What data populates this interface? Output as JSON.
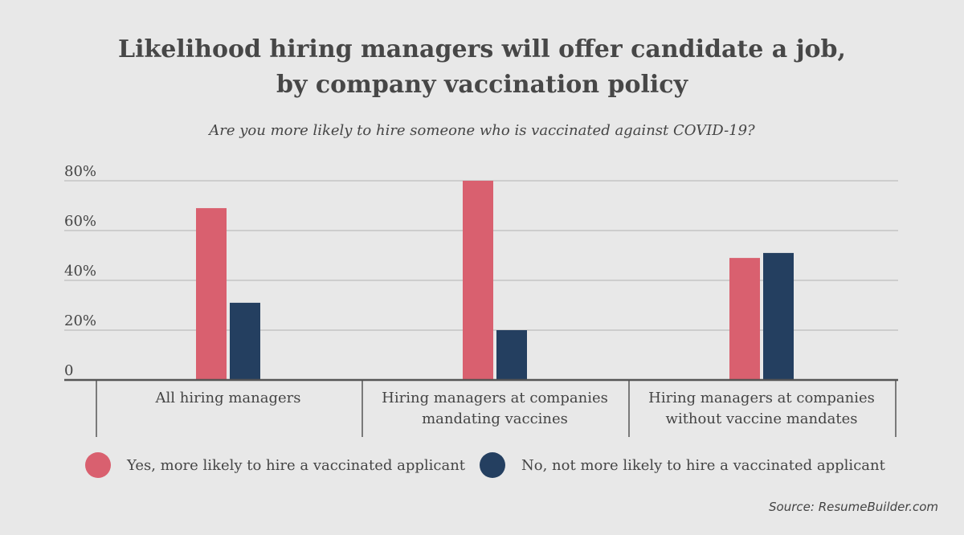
{
  "header": {
    "title_line1": "Likelihood hiring managers will offer candidate a job,",
    "title_line2": "by company vaccination policy",
    "subtitle": "Are you more likely to hire someone who is vaccinated against COVID-19?"
  },
  "chart_data": {
    "type": "bar",
    "title": "Likelihood hiring managers will offer candidate a job, by company vaccination policy",
    "subtitle": "Are you more likely to hire someone who is vaccinated against COVID-19?",
    "categories": [
      [
        "All hiring managers"
      ],
      [
        "Hiring managers at companies",
        "mandating vaccines"
      ],
      [
        "Hiring managers at companies",
        "without vaccine mandates"
      ]
    ],
    "series": [
      {
        "name": "Yes, more likely to hire a vaccinated applicant",
        "color": "#d9606f",
        "values": [
          69,
          80,
          49
        ]
      },
      {
        "name": "No, not more likely to hire a vaccinated applicant",
        "color": "#243f60",
        "values": [
          31,
          20,
          51
        ]
      }
    ],
    "yticks": [
      "0",
      "20%",
      "40%",
      "60%",
      "80%"
    ],
    "ytick_values": [
      0,
      20,
      40,
      60,
      80
    ],
    "ylim": [
      0,
      80
    ],
    "grid": true,
    "legend_position": "bottom"
  },
  "source": "Source: ResumeBuilder.com"
}
